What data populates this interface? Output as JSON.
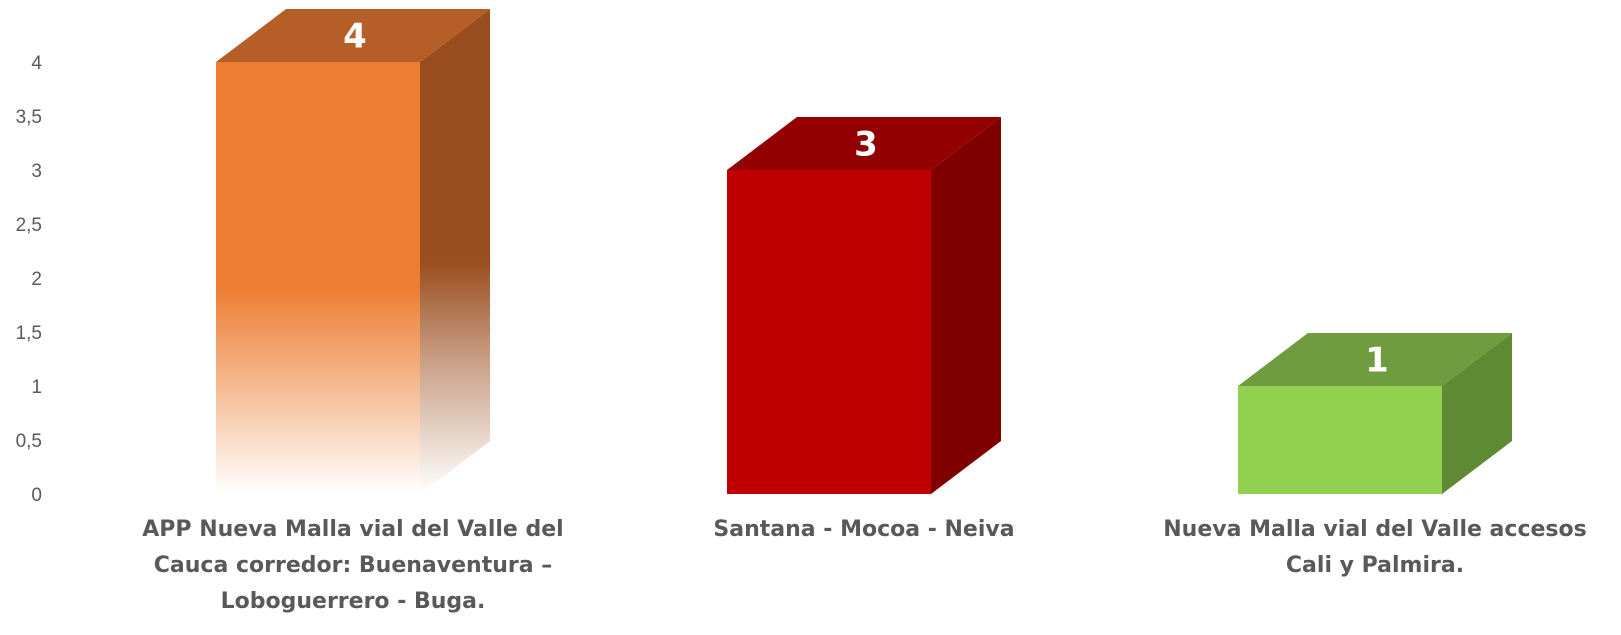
{
  "chart_data": {
    "type": "bar",
    "style": "3d-column",
    "categories": [
      "APP Nueva Malla vial del Valle del Cauca corredor: Buenaventura – Loboguerrero - Buga.",
      "Santana - Mocoa - Neiva",
      "Nueva Malla vial del Valle accesos Cali y Palmira."
    ],
    "values": [
      4,
      3,
      1
    ],
    "data_labels": [
      "4",
      "3",
      "1"
    ],
    "bar_colors": [
      {
        "front": "#ED7D31",
        "side": "#9A4D1E",
        "top": "#B55E27",
        "fade": true
      },
      {
        "front": "#C00000",
        "side": "#800000",
        "top": "#930000",
        "fade": false
      },
      {
        "front": "#92D050",
        "side": "#5E8A33",
        "top": "#6E9C3E",
        "fade": false
      }
    ],
    "ylim": [
      0,
      4
    ],
    "y_ticks": [
      "0",
      "0,5",
      "1",
      "1,5",
      "2",
      "2,5",
      "3",
      "3,5",
      "4"
    ],
    "title": "",
    "xlabel": "",
    "ylabel": "",
    "grid": false,
    "legend": "none"
  }
}
